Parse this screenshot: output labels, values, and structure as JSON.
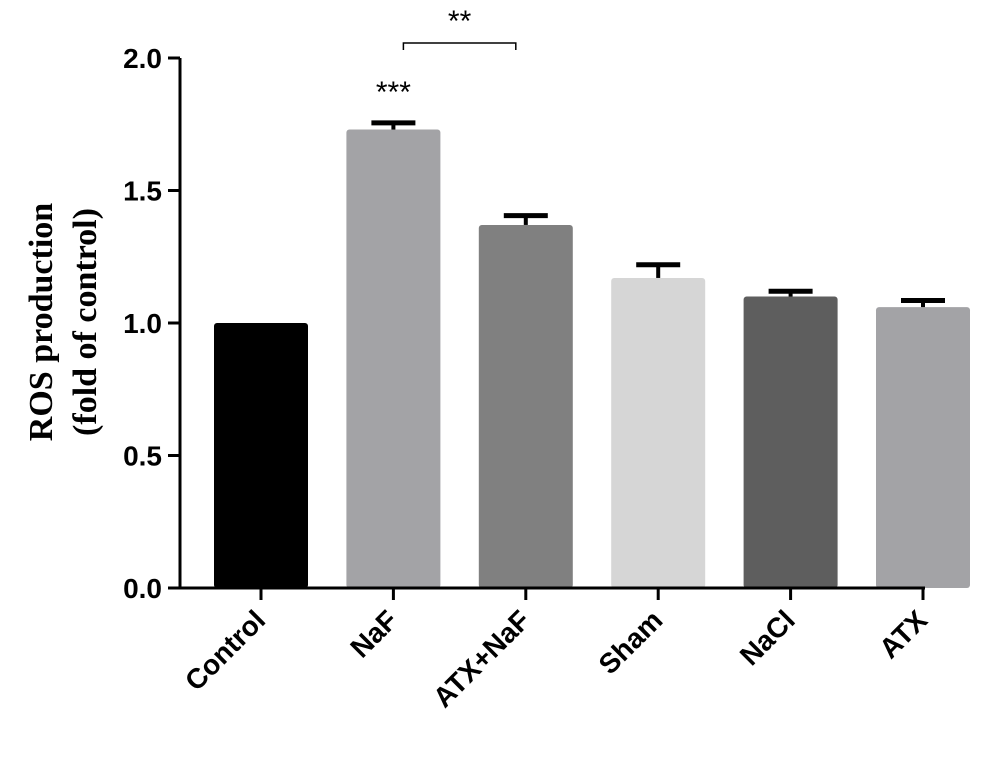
{
  "chart_data": {
    "type": "bar",
    "title": "",
    "ylabel_line1": "ROS production",
    "ylabel_line2": "(fold of control)",
    "xlabel": "",
    "categories": [
      "Control",
      "NaF",
      "ATX+NaF",
      "Sham",
      "NaCl",
      "ATX"
    ],
    "values": [
      1.0,
      1.73,
      1.37,
      1.17,
      1.1,
      1.06
    ],
    "errors": [
      0.0,
      0.025,
      0.035,
      0.05,
      0.02,
      0.025
    ],
    "colors": [
      "#000000",
      "#a3a3a6",
      "#808080",
      "#d6d6d6",
      "#5e5e5e",
      "#a3a3a6"
    ],
    "ylim": [
      0,
      2.0
    ],
    "yticks": [
      0.0,
      0.5,
      1.0,
      1.5,
      2.0
    ],
    "ytick_labels": [
      "0.0",
      "0.5",
      "1.0",
      "1.5",
      "2.0"
    ],
    "grid": false,
    "annotations": [
      {
        "text": "***",
        "category": "NaF"
      },
      {
        "text": "**",
        "type": "bracket",
        "from": "NaF",
        "to": "ATX+NaF"
      }
    ]
  }
}
